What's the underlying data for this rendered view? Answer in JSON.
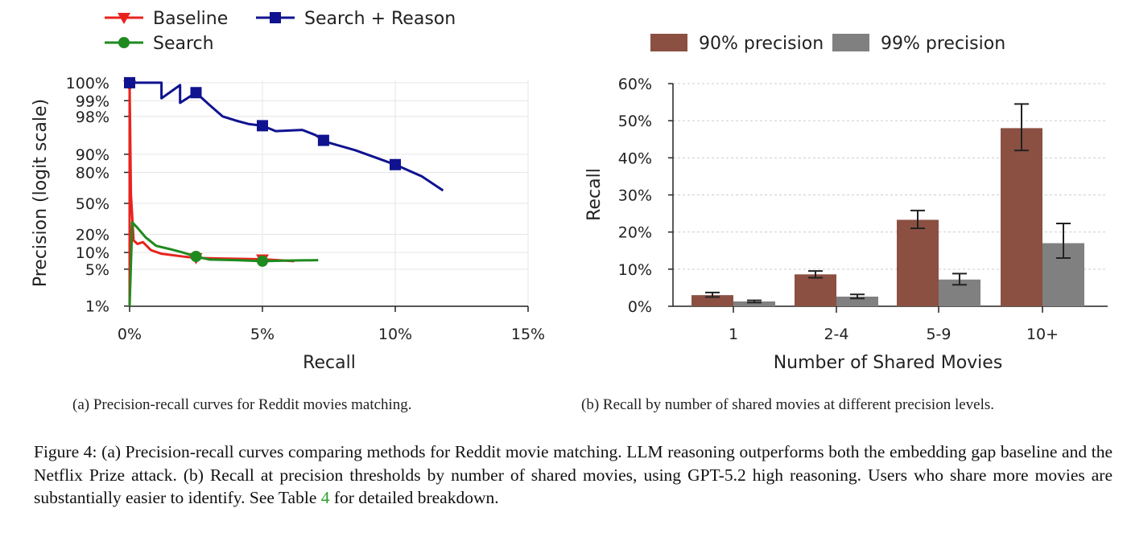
{
  "chart_data": [
    {
      "type": "line",
      "xlabel": "Recall",
      "ylabel": "Precision (logit scale)",
      "xlim": [
        0,
        15
      ],
      "y_scale": "logit",
      "x_ticks": [
        {
          "v": 0,
          "label": "0%"
        },
        {
          "v": 5,
          "label": "5%"
        },
        {
          "v": 10,
          "label": "10%"
        },
        {
          "v": 15,
          "label": "15%"
        }
      ],
      "y_ticks": [
        {
          "v": 1,
          "label": "1%"
        },
        {
          "v": 5,
          "label": "5%"
        },
        {
          "v": 10,
          "label": "10%"
        },
        {
          "v": 20,
          "label": "20%"
        },
        {
          "v": 50,
          "label": "50%"
        },
        {
          "v": 80,
          "label": "80%"
        },
        {
          "v": 90,
          "label": "90%"
        },
        {
          "v": 98,
          "label": "98%"
        },
        {
          "v": 99,
          "label": "99%"
        },
        {
          "v": 99.55,
          "label": "100%"
        }
      ],
      "grid": true,
      "legend_position": "top-left, outside",
      "series": [
        {
          "name": "Baseline",
          "color": "#e8231e",
          "marker": "triangle-down",
          "points": [
            [
              0,
              1
            ],
            [
              0,
              99.5
            ],
            [
              0.05,
              60
            ],
            [
              0.15,
              16
            ],
            [
              0.3,
              14
            ],
            [
              0.5,
              15
            ],
            [
              0.8,
              11
            ],
            [
              1.2,
              9.5
            ],
            [
              2,
              8.5
            ],
            [
              2.5,
              8
            ],
            [
              3.5,
              7.8
            ],
            [
              5,
              7.6
            ],
            [
              6.2,
              7
            ]
          ],
          "markers_at": [
            0,
            2.5,
            5
          ]
        },
        {
          "name": "Search",
          "color": "#1f8a1f",
          "marker": "circle",
          "points": [
            [
              0,
              1
            ],
            [
              0.1,
              30
            ],
            [
              0.3,
              25
            ],
            [
              0.6,
              18
            ],
            [
              1,
              13
            ],
            [
              1.5,
              11.5
            ],
            [
              2,
              10
            ],
            [
              2.5,
              8.5
            ],
            [
              3,
              7.5
            ],
            [
              4,
              7.3
            ],
            [
              5,
              7
            ],
            [
              6,
              7.2
            ],
            [
              7.1,
              7.3
            ]
          ],
          "markers_at": [
            2.5,
            5
          ]
        },
        {
          "name": "Search + Reason",
          "color": "#10138f",
          "marker": "square",
          "points": [
            [
              0,
              99.55
            ],
            [
              1.2,
              99.55
            ],
            [
              1.2,
              99.1
            ],
            [
              1.9,
              99.5
            ],
            [
              1.9,
              98.9
            ],
            [
              2.5,
              99.3
            ],
            [
              3,
              98.8
            ],
            [
              3.5,
              98
            ],
            [
              4,
              97.6
            ],
            [
              4.5,
              97.2
            ],
            [
              5,
              97
            ],
            [
              5.5,
              96.2
            ],
            [
              6.5,
              96.4
            ],
            [
              7,
              95.5
            ],
            [
              7.4,
              94
            ],
            [
              8.5,
              91.5
            ],
            [
              10,
              85
            ],
            [
              11,
              77
            ],
            [
              11.8,
              64
            ]
          ],
          "markers_at": [
            0,
            2.5,
            5,
            7.3,
            10
          ]
        }
      ],
      "subcaption": "(a) Precision-recall curves for Reddit movies matching."
    },
    {
      "type": "bar",
      "xlabel": "Number of Shared Movies",
      "ylabel": "Recall",
      "ylim": [
        0,
        60
      ],
      "y_ticks": [
        {
          "v": 0,
          "label": "0%"
        },
        {
          "v": 10,
          "label": "10%"
        },
        {
          "v": 20,
          "label": "20%"
        },
        {
          "v": 30,
          "label": "30%"
        },
        {
          "v": 40,
          "label": "40%"
        },
        {
          "v": 50,
          "label": "50%"
        },
        {
          "v": 60,
          "label": "60%"
        }
      ],
      "grid": true,
      "legend_position": "top, outside",
      "categories": [
        "1",
        "2-4",
        "5-9",
        "10+"
      ],
      "series": [
        {
          "name": "90% precision",
          "color": "#8b5042",
          "values": [
            3.0,
            8.6,
            23.3,
            48.0
          ],
          "err_low": [
            2.5,
            7.7,
            21.0,
            42.0
          ],
          "err_high": [
            3.7,
            9.5,
            25.8,
            54.5
          ]
        },
        {
          "name": "99% precision",
          "color": "#808080",
          "values": [
            1.3,
            2.6,
            7.2,
            17.0
          ],
          "err_low": [
            1.0,
            2.1,
            5.8,
            13.0
          ],
          "err_high": [
            1.6,
            3.2,
            8.8,
            22.3
          ]
        }
      ],
      "subcaption": "(b) Recall by number of shared movies at different precision levels."
    }
  ],
  "caption": {
    "part1": "Figure 4: (a) Precision-recall curves comparing methods for Reddit movie matching. LLM reasoning outperforms both the embedding gap baseline and the Netflix Prize attack. (b) Recall at precision thresholds by number of shared movies, using GPT-5.2 high reasoning. Users who share more movies are substantially easier to identify. See Table ",
    "ref": "4",
    "part2": " for detailed breakdown."
  }
}
